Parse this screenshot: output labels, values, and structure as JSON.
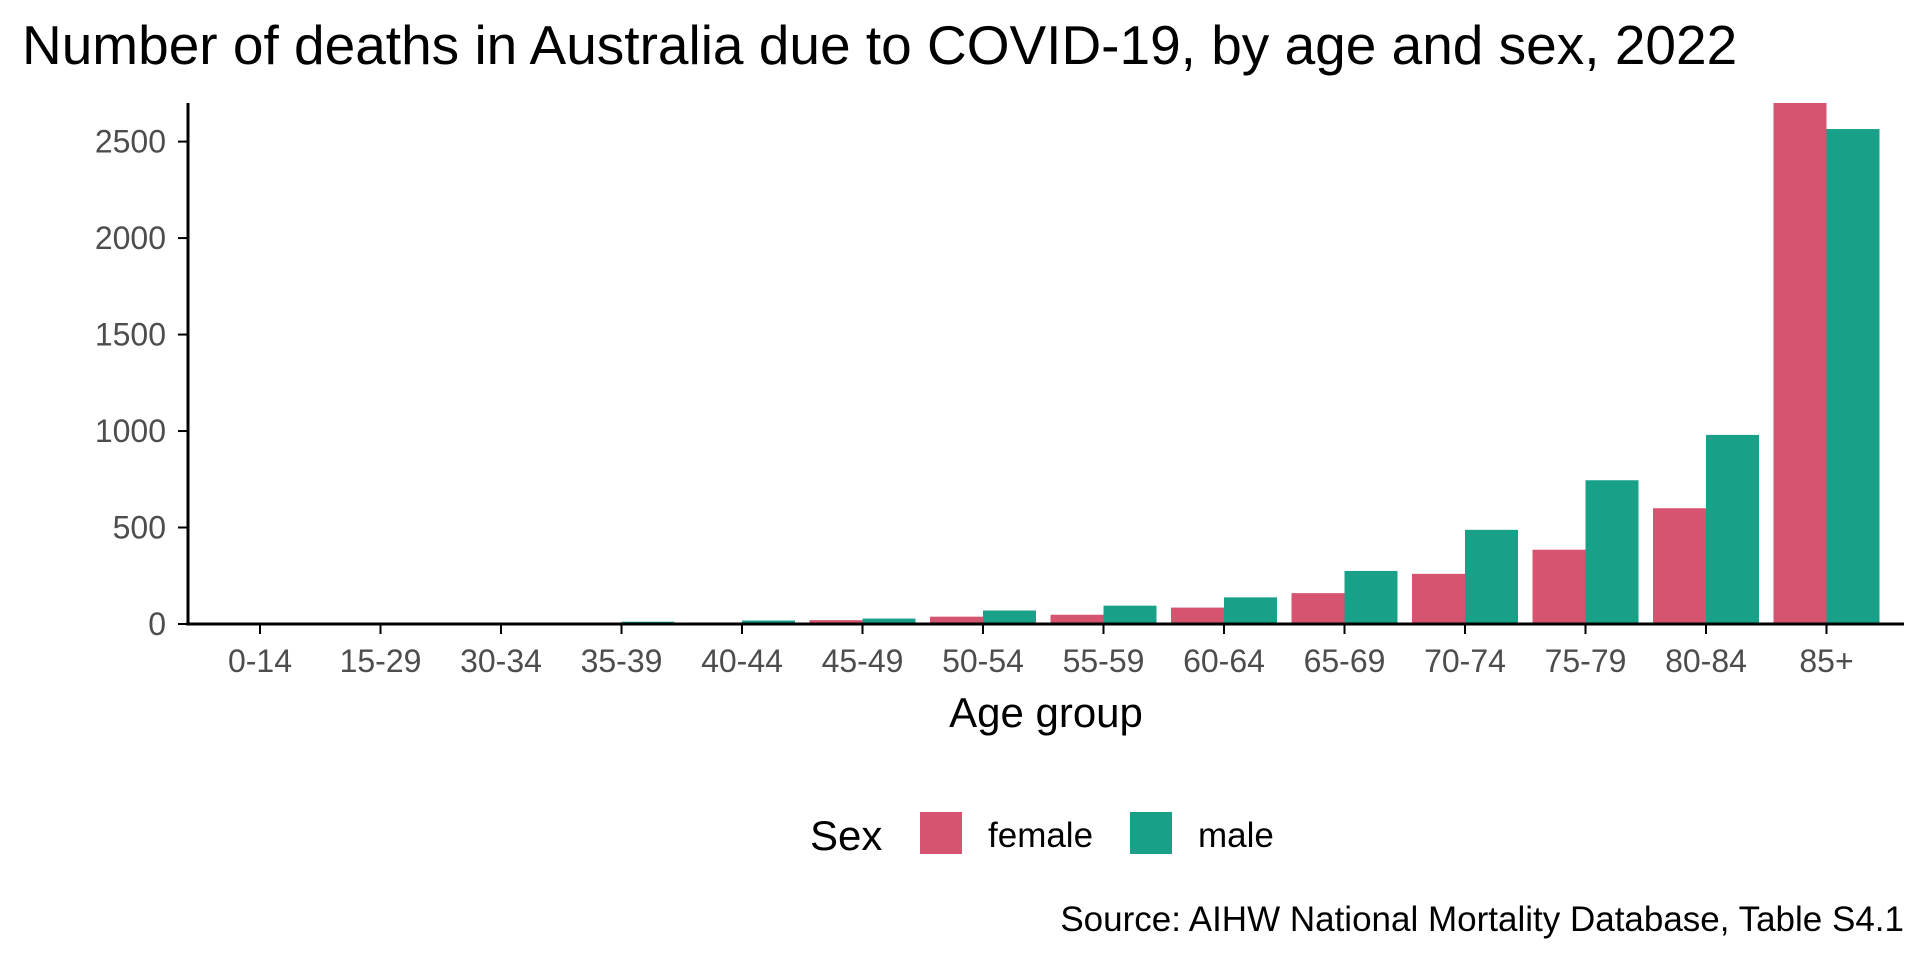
{
  "chart_data": {
    "type": "bar",
    "title": "Number of deaths in Australia due to COVID-19, by age and sex, 2022",
    "xlabel": "Age group",
    "ylabel": "",
    "caption": "Source: AIHW National Mortality Database, Table S4.1",
    "categories": [
      "0-14",
      "15-29",
      "30-34",
      "35-39",
      "40-44",
      "45-49",
      "50-54",
      "55-59",
      "60-64",
      "65-69",
      "70-74",
      "75-79",
      "80-84",
      "85+"
    ],
    "series": [
      {
        "name": "female",
        "color": "#d6546f",
        "values": [
          2,
          4,
          3,
          5,
          8,
          20,
          38,
          48,
          85,
          160,
          260,
          385,
          600,
          2700
        ]
      },
      {
        "name": "male",
        "color": "#18a088",
        "values": [
          3,
          5,
          6,
          12,
          18,
          28,
          70,
          95,
          138,
          275,
          488,
          745,
          980,
          2565
        ]
      }
    ],
    "ylim": [
      0,
      2700
    ],
    "yticks": [
      0,
      500,
      1000,
      1500,
      2000,
      2500
    ],
    "grid": false,
    "legend": {
      "title": "Sex",
      "position": "bottom",
      "items": [
        "female",
        "male"
      ]
    }
  }
}
